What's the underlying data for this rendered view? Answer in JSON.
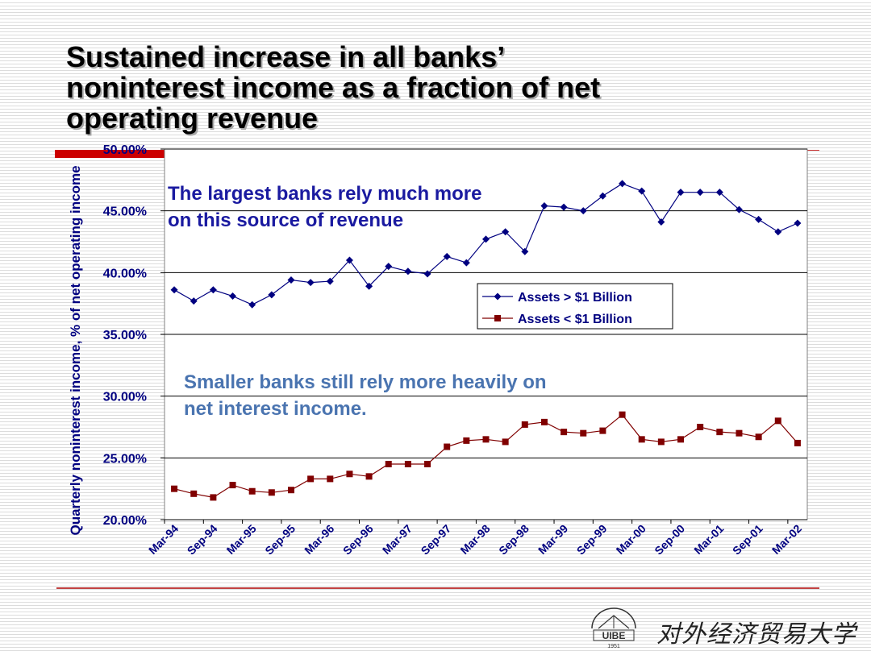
{
  "slide": {
    "title_lines": [
      "Sustained increase in all banks’",
      "noninterest income as a fraction of net",
      "operating revenue"
    ],
    "logo": {
      "emblem_text": "UIBE",
      "emblem_year": "1951",
      "name": "对外经济贸易大学"
    }
  },
  "chart_data": {
    "type": "line",
    "ylabel": "Quarterly noninterest income, % of net operating income",
    "xlabel": "",
    "ylim": [
      0.2,
      0.5
    ],
    "yticks": [
      "20.00%",
      "25.00%",
      "30.00%",
      "35.00%",
      "40.00%",
      "45.00%",
      "50.00%"
    ],
    "x": [
      "Mar-94",
      "Jun-94",
      "Sep-94",
      "Dec-94",
      "Mar-95",
      "Jun-95",
      "Sep-95",
      "Dec-95",
      "Mar-96",
      "Jun-96",
      "Sep-96",
      "Dec-96",
      "Mar-97",
      "Jun-97",
      "Sep-97",
      "Dec-97",
      "Mar-98",
      "Jun-98",
      "Sep-98",
      "Dec-98",
      "Mar-99",
      "Jun-99",
      "Sep-99",
      "Dec-99",
      "Mar-00",
      "Jun-00",
      "Sep-00",
      "Dec-00",
      "Mar-01",
      "Jun-01",
      "Sep-01",
      "Dec-01",
      "Mar-02"
    ],
    "xtick_labels": [
      "Mar-94",
      "Sep-94",
      "Mar-95",
      "Sep-95",
      "Mar-96",
      "Sep-96",
      "Mar-97",
      "Sep-97",
      "Mar-98",
      "Sep-98",
      "Mar-99",
      "Sep-99",
      "Mar-00",
      "Sep-00",
      "Mar-01",
      "Sep-01",
      "Mar-02"
    ],
    "grid": "horizontal",
    "legend": "center-right",
    "series": [
      {
        "name": "Assets > $1 Billion",
        "color": "#000080",
        "marker": "diamond",
        "values": [
          0.386,
          0.377,
          0.386,
          0.381,
          0.374,
          0.382,
          0.394,
          0.392,
          0.393,
          0.41,
          0.389,
          0.405,
          0.401,
          0.399,
          0.413,
          0.408,
          0.427,
          0.433,
          0.417,
          0.454,
          0.453,
          0.45,
          0.462,
          0.472,
          0.466,
          0.441,
          0.465,
          0.465,
          0.465,
          0.451,
          0.443,
          0.433,
          0.44
        ]
      },
      {
        "name": "Assets < $1 Billion",
        "color": "#800000",
        "marker": "square",
        "values": [
          0.225,
          0.221,
          0.218,
          0.228,
          0.223,
          0.222,
          0.224,
          0.233,
          0.233,
          0.237,
          0.235,
          0.245,
          0.245,
          0.245,
          0.259,
          0.264,
          0.265,
          0.263,
          0.277,
          0.279,
          0.271,
          0.27,
          0.272,
          0.285,
          0.265,
          0.263,
          0.265,
          0.275,
          0.271,
          0.27,
          0.267,
          0.28,
          0.262
        ]
      }
    ],
    "annotations": [
      {
        "lines": [
          "The largest banks rely much more",
          "on this source of revenue"
        ],
        "color": "#1a1aa0"
      },
      {
        "lines": [
          "Smaller banks still rely more heavily on",
          "net interest income."
        ],
        "color": "#4a74b0"
      }
    ]
  }
}
